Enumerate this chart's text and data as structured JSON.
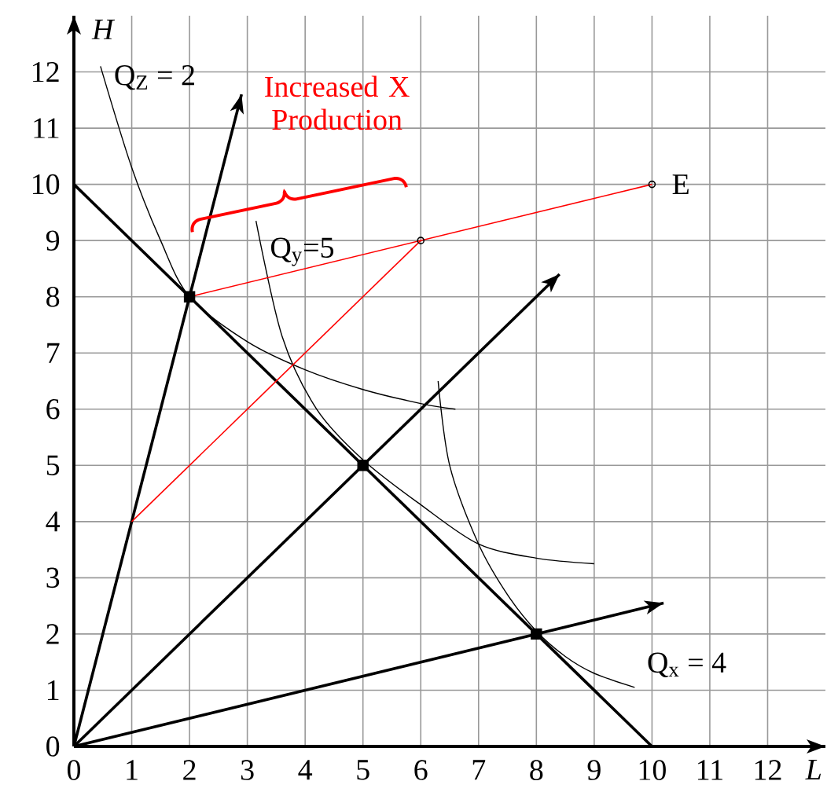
{
  "chart_data": {
    "type": "line",
    "xlabel": "L",
    "ylabel": "H",
    "xlim": [
      0,
      13
    ],
    "ylim": [
      0,
      13
    ],
    "xticks": [
      0,
      1,
      2,
      3,
      4,
      5,
      6,
      7,
      8,
      9,
      10,
      11,
      12
    ],
    "yticks": [
      0,
      1,
      2,
      3,
      4,
      5,
      6,
      7,
      8,
      9,
      10,
      11,
      12
    ],
    "grid": true,
    "marker": "none",
    "series": [
      {
        "color": "#000000",
        "x": [
          0,
          10
        ],
        "values": [
          10,
          0
        ]
      },
      {
        "color": "#000000",
        "x": [
          0,
          2.9
        ],
        "values": [
          0,
          11.6
        ]
      },
      {
        "color": "#000000",
        "x": [
          0,
          8.4
        ],
        "values": [
          0,
          8.4
        ]
      },
      {
        "color": "#000000",
        "x": [
          0,
          10.2
        ],
        "values": [
          0,
          2.55
        ]
      },
      {
        "color": "#000000",
        "x": [
          0.46,
          1,
          1.5,
          2,
          3,
          4,
          5,
          6,
          6.6
        ],
        "values": [
          12.1,
          10.3,
          9,
          8,
          7.2,
          6.7,
          6.35,
          6.1,
          6.0
        ]
      },
      {
        "color": "#000000",
        "x": [
          3.15,
          3.6,
          4.2,
          5,
          6,
          7,
          8,
          9
        ],
        "values": [
          9.35,
          7.3,
          6,
          5.1,
          4.3,
          3.6,
          3.35,
          3.25
        ]
      },
      {
        "color": "#000000",
        "x": [
          6.3,
          6.5,
          7,
          7.5,
          8,
          8.5,
          9,
          9.7
        ],
        "values": [
          6.5,
          5,
          3.6,
          2.7,
          2.05,
          1.6,
          1.3,
          1.05
        ]
      },
      {
        "color": "#ff0000",
        "x": [
          2,
          10
        ],
        "values": [
          8,
          10
        ]
      },
      {
        "color": "#ff0000",
        "x": [
          1,
          6
        ],
        "values": [
          4,
          9
        ]
      },
      {
        "type": "scatter",
        "marker": "square",
        "color": "#000000",
        "x": [
          2,
          5,
          8
        ],
        "values": [
          8,
          5,
          2
        ]
      },
      {
        "type": "scatter",
        "marker": "circle",
        "color": "#000000",
        "x": [
          6,
          10
        ],
        "values": [
          9,
          10
        ]
      }
    ],
    "annotations": [
      "Q$_{Z}$ = 2",
      "Increased X Production",
      "Q$_{y}$=5",
      "E",
      "Q$_{x}$ = 4"
    ]
  }
}
